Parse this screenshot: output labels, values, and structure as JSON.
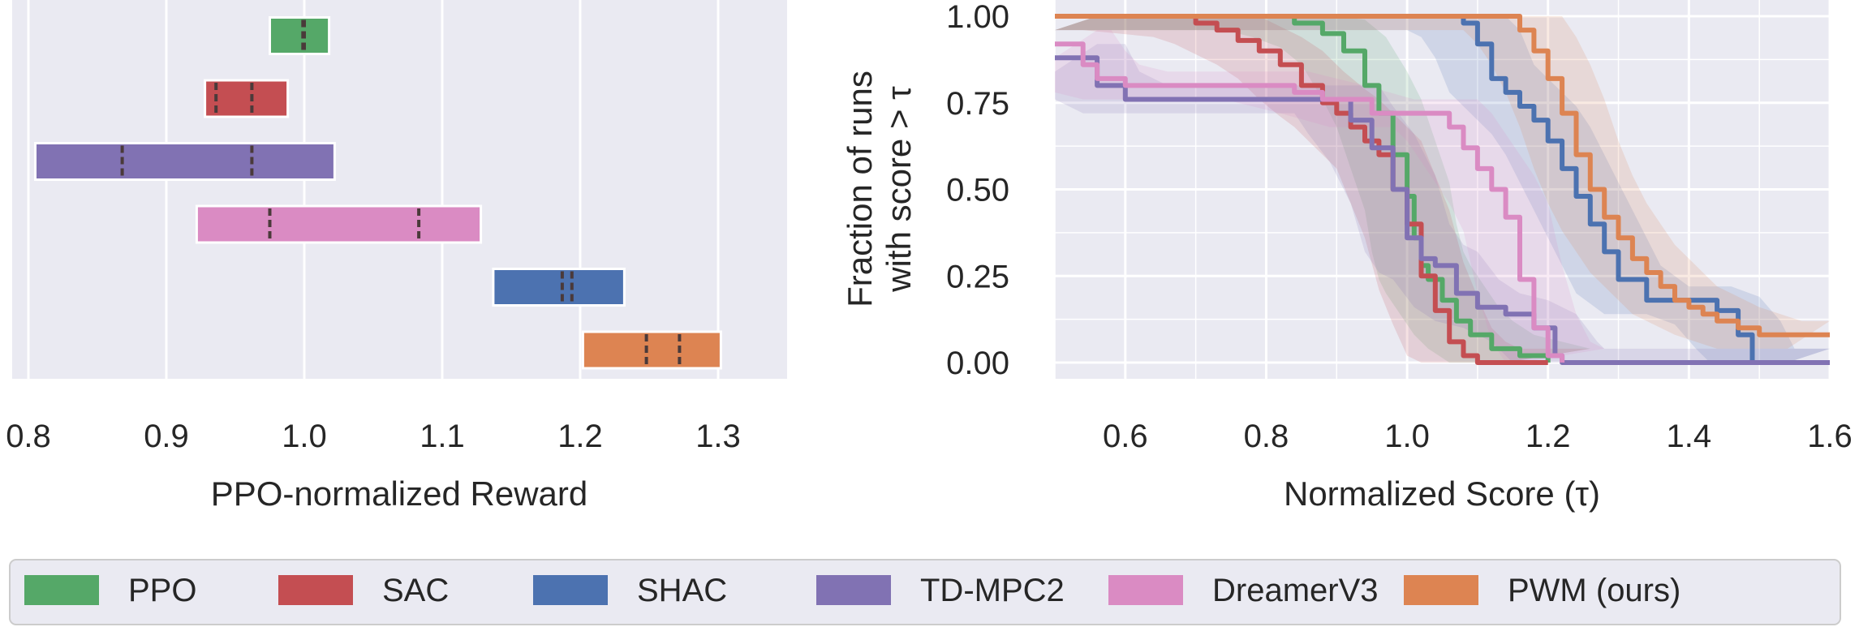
{
  "chart_data": [
    {
      "type": "bar",
      "subtype": "interval",
      "xlabel": "PPO-normalized Reward",
      "xlim": [
        0.8,
        1.35
      ],
      "xticks": [
        "0.8",
        "0.9",
        "1.0",
        "1.1",
        "1.2",
        "1.3"
      ],
      "grid": true,
      "series": [
        {
          "name": "PPO",
          "color": "#55a868",
          "low": 0.975,
          "high": 1.018,
          "marks": [
            0.999,
            1.0
          ]
        },
        {
          "name": "SAC",
          "color": "#c44e52",
          "low": 0.928,
          "high": 0.988,
          "marks": [
            0.936,
            0.962
          ]
        },
        {
          "name": "TD-MPC2",
          "color": "#8172b3",
          "low": 0.805,
          "high": 1.022,
          "marks": [
            0.868,
            0.962
          ]
        },
        {
          "name": "DreamerV3",
          "color": "#da8bc3",
          "low": 0.922,
          "high": 1.128,
          "marks": [
            0.975,
            1.083
          ]
        },
        {
          "name": "SHAC",
          "color": "#4c72b0",
          "low": 1.137,
          "high": 1.232,
          "marks": [
            1.187,
            1.194
          ]
        },
        {
          "name": "PWM (ours)",
          "color": "#dd8452",
          "low": 1.202,
          "high": 1.302,
          "marks": [
            1.248,
            1.272
          ]
        }
      ]
    },
    {
      "type": "line",
      "subtype": "performance-profile",
      "xlabel": "Normalized Score (τ)",
      "ylabel_line1": "Fraction of runs",
      "ylabel_line2": "with score > τ",
      "xlim": [
        0.5,
        1.6
      ],
      "ylim": [
        -0.05,
        1.0
      ],
      "xticks": [
        "0.6",
        "0.8",
        "1.0",
        "1.2",
        "1.4",
        "1.6"
      ],
      "yticks": [
        "0.00",
        "0.25",
        "0.50",
        "0.75",
        "1.00"
      ],
      "grid": true,
      "series": [
        {
          "name": "PPO",
          "color": "#55a868",
          "x": [
            0.5,
            0.8,
            0.84,
            0.88,
            0.91,
            0.94,
            0.96,
            0.98,
            1.0,
            1.01,
            1.02,
            1.03,
            1.05,
            1.07,
            1.09,
            1.12,
            1.16,
            1.2
          ],
          "y": [
            1.0,
            1.0,
            0.98,
            0.95,
            0.9,
            0.8,
            0.72,
            0.6,
            0.48,
            0.36,
            0.28,
            0.24,
            0.18,
            0.12,
            0.08,
            0.04,
            0.02,
            0.0
          ]
        },
        {
          "name": "SAC",
          "color": "#c44e52",
          "x": [
            0.5,
            0.6,
            0.7,
            0.73,
            0.76,
            0.79,
            0.82,
            0.85,
            0.88,
            0.9,
            0.92,
            0.94,
            0.96,
            0.98,
            1.0,
            1.02,
            1.04,
            1.06,
            1.08,
            1.1,
            1.15,
            1.2
          ],
          "y": [
            1.0,
            1.0,
            0.98,
            0.96,
            0.93,
            0.9,
            0.86,
            0.8,
            0.75,
            0.72,
            0.68,
            0.64,
            0.6,
            0.5,
            0.4,
            0.25,
            0.15,
            0.06,
            0.02,
            0.0,
            0.0,
            0.0
          ]
        },
        {
          "name": "SHAC",
          "color": "#4c72b0",
          "x": [
            0.5,
            1.06,
            1.08,
            1.1,
            1.12,
            1.14,
            1.16,
            1.18,
            1.2,
            1.22,
            1.24,
            1.26,
            1.28,
            1.3,
            1.34,
            1.4,
            1.44,
            1.47,
            1.49,
            1.6
          ],
          "y": [
            1.0,
            1.0,
            0.98,
            0.92,
            0.82,
            0.78,
            0.74,
            0.7,
            0.64,
            0.56,
            0.48,
            0.4,
            0.32,
            0.24,
            0.18,
            0.18,
            0.15,
            0.08,
            0.0,
            0.0
          ]
        },
        {
          "name": "TD-MPC2",
          "color": "#8172b3",
          "x": [
            0.5,
            0.54,
            0.56,
            0.6,
            0.9,
            0.92,
            0.95,
            0.98,
            1.0,
            1.02,
            1.04,
            1.07,
            1.1,
            1.14,
            1.18,
            1.21,
            1.22,
            1.6
          ],
          "y": [
            0.88,
            0.88,
            0.8,
            0.76,
            0.76,
            0.7,
            0.62,
            0.5,
            0.36,
            0.3,
            0.28,
            0.2,
            0.16,
            0.14,
            0.1,
            0.02,
            0.0,
            0.0
          ]
        },
        {
          "name": "DreamerV3",
          "color": "#da8bc3",
          "x": [
            0.5,
            0.52,
            0.54,
            0.56,
            0.6,
            0.8,
            0.84,
            0.88,
            0.95,
            1.0,
            1.04,
            1.06,
            1.08,
            1.1,
            1.12,
            1.14,
            1.16,
            1.18,
            1.2,
            1.22
          ],
          "y": [
            0.92,
            0.92,
            0.86,
            0.82,
            0.8,
            0.8,
            0.78,
            0.76,
            0.72,
            0.72,
            0.72,
            0.68,
            0.62,
            0.56,
            0.5,
            0.42,
            0.24,
            0.1,
            0.02,
            0.0
          ]
        },
        {
          "name": "PWM (ours)",
          "color": "#dd8452",
          "x": [
            0.5,
            1.14,
            1.16,
            1.18,
            1.2,
            1.22,
            1.24,
            1.26,
            1.28,
            1.3,
            1.32,
            1.34,
            1.36,
            1.38,
            1.4,
            1.42,
            1.44,
            1.47,
            1.5,
            1.52,
            1.6
          ],
          "y": [
            1.0,
            1.0,
            0.96,
            0.9,
            0.82,
            0.72,
            0.6,
            0.5,
            0.42,
            0.36,
            0.3,
            0.26,
            0.22,
            0.18,
            0.16,
            0.14,
            0.12,
            0.1,
            0.08,
            0.08,
            0.08
          ]
        }
      ]
    }
  ],
  "legend": {
    "items": [
      {
        "label": "PPO",
        "color": "#55a868"
      },
      {
        "label": "SAC",
        "color": "#c44e52"
      },
      {
        "label": "SHAC",
        "color": "#4c72b0"
      },
      {
        "label": "TD-MPC2",
        "color": "#8172b3"
      },
      {
        "label": "DreamerV3",
        "color": "#da8bc3"
      },
      {
        "label": "PWM (ours)",
        "color": "#dd8452"
      }
    ]
  }
}
